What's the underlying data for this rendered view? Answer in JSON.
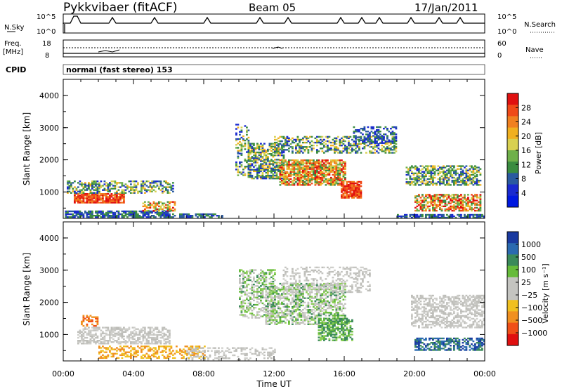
{
  "header": {
    "station": "Pykkvibaer (fitACF)",
    "beam": "Beam 05",
    "date": "17/Jan/2011"
  },
  "top_panels": {
    "nsky_label": "N.Sky",
    "nsearch_label": "N.Search",
    "nsky_ticks": [
      "10^5",
      "10^0"
    ],
    "nsearch_ticks": [
      "10^5",
      "10^0"
    ],
    "freq_label": "Freq.",
    "freq_unit": "[MHz]",
    "freq_ticks": [
      "18",
      "8"
    ],
    "nave_label": "Nave",
    "nave_ticks": [
      "60",
      "0"
    ],
    "cpid_label": "CPID",
    "cpid_value": "normal (fast stereo) 153"
  },
  "chart_data": [
    {
      "type": "heatmap",
      "name": "power",
      "ylabel": "Slant Range [km]",
      "xlabel": "Time UT",
      "yticks": [
        "1000",
        "2000",
        "3000",
        "4000"
      ],
      "ylim": [
        180,
        4500
      ],
      "xlim": [
        0,
        24
      ],
      "xticks": [
        "00:00",
        "04:00",
        "08:00",
        "12:00",
        "16:00",
        "20:00",
        "00:00"
      ],
      "colorbar": {
        "label": "Power [dB]",
        "ticks": [
          "28",
          "24",
          "20",
          "16",
          "12",
          "8",
          "4"
        ],
        "colors": [
          "#e01010",
          "#f04a18",
          "#f08020",
          "#f0b020",
          "#d8d050",
          "#6fb04a",
          "#3a8c40",
          "#2a5aa0",
          "#1a2ad0",
          "#0018e0"
        ]
      }
    },
    {
      "type": "heatmap",
      "name": "velocity",
      "ylabel": "Slant Range [km]",
      "xlabel": "Time UT",
      "yticks": [
        "1000",
        "2000",
        "3000",
        "4000"
      ],
      "ylim": [
        180,
        4500
      ],
      "xlim": [
        0,
        24
      ],
      "xticks": [
        "00:00",
        "04:00",
        "08:00",
        "12:00",
        "16:00",
        "20:00",
        "00:00"
      ],
      "colorbar": {
        "label": "Velocity [m s⁻¹]",
        "ticks": [
          "1000",
          "500",
          "100",
          "25",
          "−25",
          "−100",
          "−500",
          "−1000"
        ],
        "colors": [
          "#1a3aa0",
          "#2a6ab0",
          "#3a8a5a",
          "#66bb3a",
          "#c4c4c0",
          "#c4c4c0",
          "#f0c020",
          "#f09020",
          "#f05018",
          "#e01010"
        ]
      }
    }
  ],
  "x_axis": {
    "label": "Time UT",
    "ticks": [
      "00:00",
      "04:00",
      "08:00",
      "12:00",
      "16:00",
      "20:00",
      "00:00"
    ]
  }
}
